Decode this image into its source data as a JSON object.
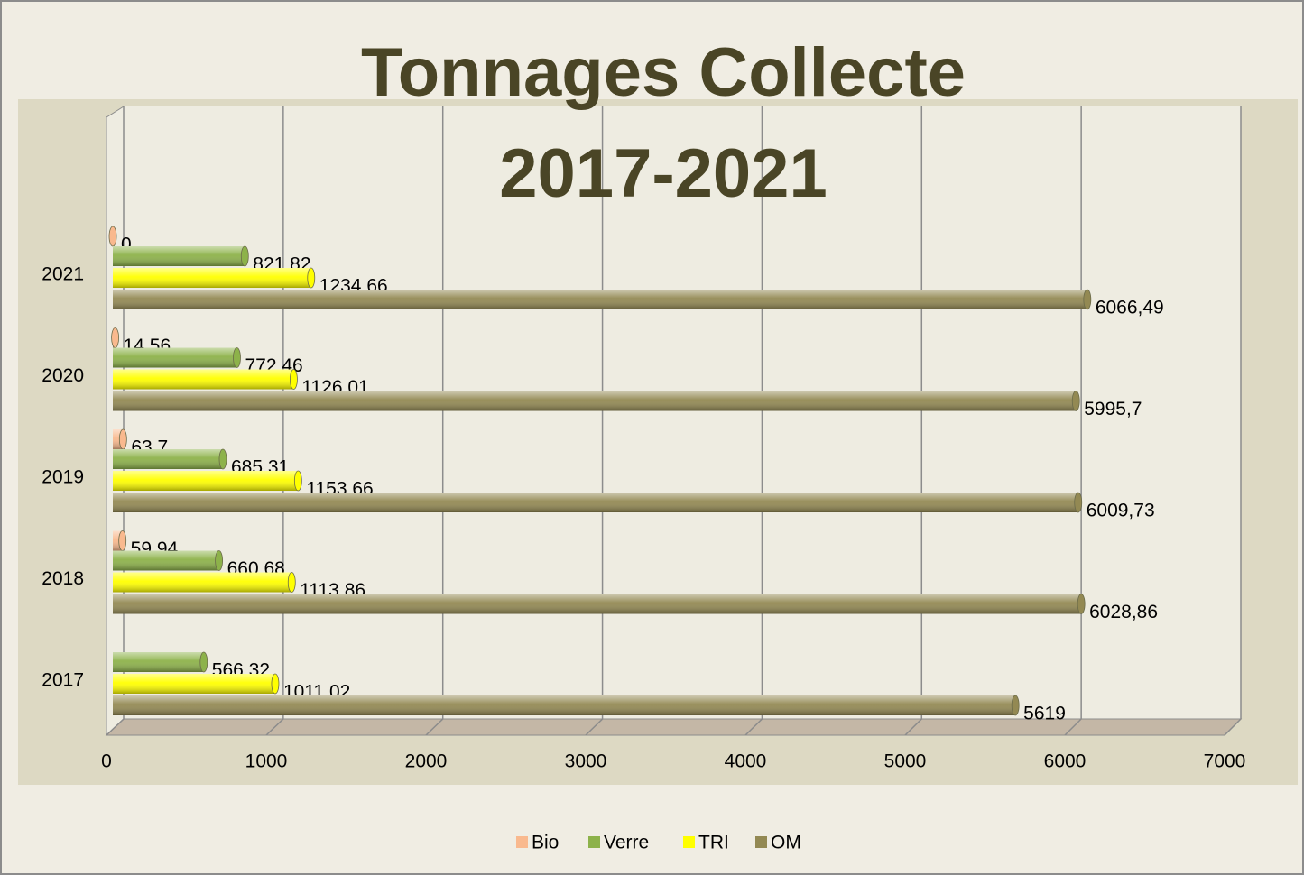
{
  "chart_data": {
    "type": "bar",
    "orientation": "horizontal",
    "title": "Tonnages Collecte 2017-2021",
    "categories": [
      "2017",
      "2018",
      "2019",
      "2020",
      "2021"
    ],
    "series": [
      {
        "name": "Bio",
        "color": "#f9b98e",
        "values": [
          null,
          59.94,
          63.7,
          14.56,
          0
        ],
        "value_labels": [
          null,
          "59,94",
          "63,7",
          "14,56",
          "0"
        ]
      },
      {
        "name": "Verre",
        "color": "#8db24a",
        "values": [
          566.32,
          660.68,
          685.31,
          772.46,
          821.82
        ],
        "value_labels": [
          "566,32",
          "660,68",
          "685,31",
          "772,46",
          "821,82"
        ]
      },
      {
        "name": "TRI",
        "color": "#ffff00",
        "values": [
          1011.02,
          1113.86,
          1153.66,
          1126.01,
          1234.66
        ],
        "value_labels": [
          "1011,02",
          "1113,86",
          "1153,66",
          "1126,01",
          "1234,66"
        ]
      },
      {
        "name": "OM",
        "color": "#938953",
        "values": [
          5619,
          6028.86,
          6009.73,
          5995.7,
          6066.49
        ],
        "value_labels": [
          "5619",
          "6028,86",
          "6009,73",
          "5995,7",
          "6066,49"
        ]
      }
    ],
    "xlim": [
      0,
      7000
    ],
    "xticks": [
      0,
      1000,
      2000,
      3000,
      4000,
      5000,
      6000,
      7000
    ],
    "grid": true,
    "legend": "bottom"
  }
}
